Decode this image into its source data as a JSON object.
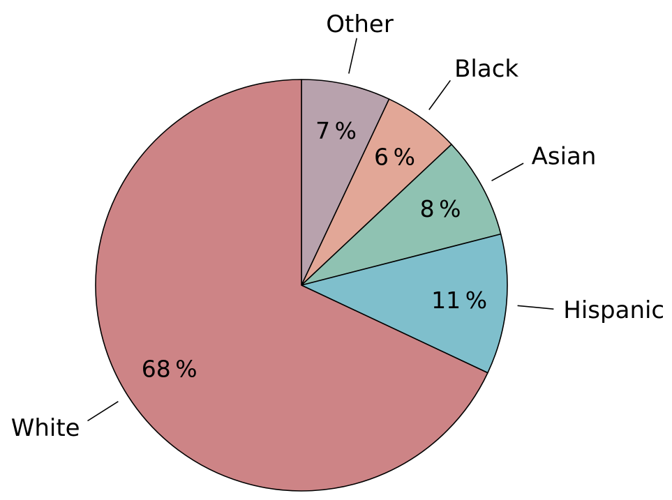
{
  "chart_data": {
    "type": "pie",
    "start": "top",
    "direction": "clockwise",
    "slices": [
      {
        "category": "Other",
        "value": 7,
        "label": "7 %",
        "color": "#b8a2ad"
      },
      {
        "category": "Black",
        "value": 6,
        "label": "6 %",
        "color": "#e2a797"
      },
      {
        "category": "Asian",
        "value": 8,
        "label": "8 %",
        "color": "#8fc2b2"
      },
      {
        "category": "Hispanic",
        "value": 11,
        "label": "11 %",
        "color": "#7fbfcc"
      },
      {
        "category": "White",
        "value": 68,
        "label": "68 %",
        "color": "#cd8486"
      }
    ]
  }
}
